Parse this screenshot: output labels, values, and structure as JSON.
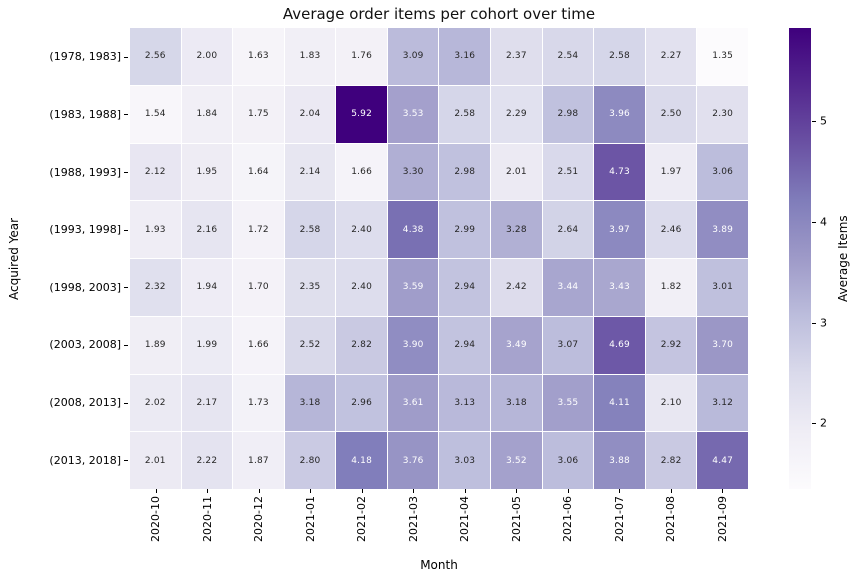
{
  "chart_data": {
    "type": "heatmap",
    "title": "Average order items per cohort over time",
    "xlabel": "Month",
    "ylabel": "Acquired Year",
    "colorbar_label": "Average Items",
    "colorbar_ticks": [
      2,
      3,
      4,
      5
    ],
    "x_categories": [
      "2020-10",
      "2020-11",
      "2020-12",
      "2021-01",
      "2021-02",
      "2021-03",
      "2021-04",
      "2021-05",
      "2021-06",
      "2021-07",
      "2021-08",
      "2021-09"
    ],
    "y_categories": [
      "(1978, 1983]",
      "(1983, 1988]",
      "(1988, 1993]",
      "(1993, 1998]",
      "(1998, 2003]",
      "(2003, 2008]",
      "(2008, 2013]",
      "(2013, 2018]"
    ],
    "values": [
      [
        2.56,
        2.0,
        1.63,
        1.83,
        1.76,
        3.09,
        3.16,
        2.37,
        2.54,
        2.58,
        2.27,
        1.35
      ],
      [
        1.54,
        1.84,
        1.75,
        2.04,
        5.92,
        3.53,
        2.58,
        2.29,
        2.98,
        3.96,
        2.5,
        2.3
      ],
      [
        2.12,
        1.95,
        1.64,
        2.14,
        1.66,
        3.3,
        2.98,
        2.01,
        2.51,
        4.73,
        1.97,
        3.06
      ],
      [
        1.93,
        2.16,
        1.72,
        2.58,
        2.4,
        4.38,
        2.99,
        3.28,
        2.64,
        3.97,
        2.46,
        3.89
      ],
      [
        2.32,
        1.94,
        1.7,
        2.35,
        2.4,
        3.59,
        2.94,
        2.42,
        3.44,
        3.43,
        1.82,
        3.01
      ],
      [
        1.89,
        1.99,
        1.66,
        2.52,
        2.82,
        3.9,
        2.94,
        3.49,
        3.07,
        4.69,
        2.92,
        3.7
      ],
      [
        2.02,
        2.17,
        1.73,
        3.18,
        2.96,
        3.61,
        3.13,
        3.18,
        3.55,
        4.11,
        2.1,
        3.12
      ],
      [
        2.01,
        2.22,
        1.87,
        2.8,
        4.18,
        3.76,
        3.03,
        3.52,
        3.06,
        3.88,
        2.82,
        4.47
      ]
    ],
    "vmin": 1.35,
    "vmax": 5.92,
    "colormap_name": "Purples",
    "colormap_stops": [
      "#fcfbfd",
      "#efedf5",
      "#dadaeb",
      "#bcbddc",
      "#9e9ac8",
      "#807dba",
      "#6a51a3",
      "#54278f",
      "#3f007d"
    ],
    "annot_dark_color": "#262626",
    "annot_light_color": "#ffffff",
    "background_color": "#ffffff"
  }
}
